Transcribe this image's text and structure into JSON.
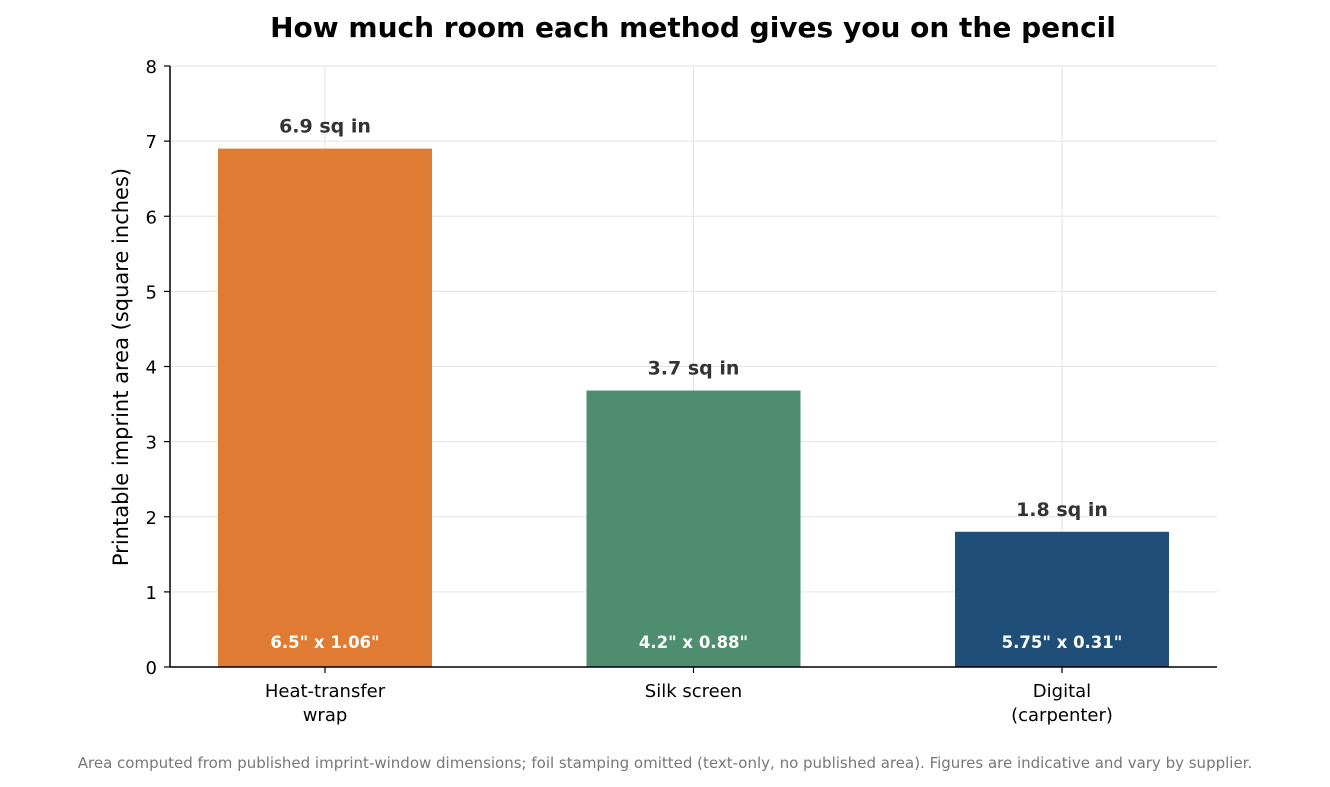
{
  "chart_data": {
    "type": "bar",
    "title": "How much room each method gives you on the pencil",
    "ylabel": "Printable imprint area (square inches)",
    "xlabel": "",
    "ylim": [
      0,
      8
    ],
    "yticks": [
      0,
      1,
      2,
      3,
      4,
      5,
      6,
      7,
      8
    ],
    "grid": true,
    "categories": [
      [
        "Heat-transfer",
        "wrap"
      ],
      [
        "Silk screen"
      ],
      [
        "Digital",
        "(carpenter)"
      ]
    ],
    "values": [
      6.9,
      3.68,
      1.8
    ],
    "value_labels": [
      "6.9 sq in",
      "3.7 sq in",
      "1.8 sq in"
    ],
    "dimension_labels": [
      "6.5\" x 1.06\"",
      "4.2\" x 0.88\"",
      "5.75\" x 0.31\""
    ],
    "colors": [
      "#e07b33",
      "#4e8d6f",
      "#1f4e79"
    ],
    "footnote": "Area computed from published imprint-window dimensions; foil stamping omitted (text-only, no published area). Figures are indicative and vary by supplier."
  }
}
